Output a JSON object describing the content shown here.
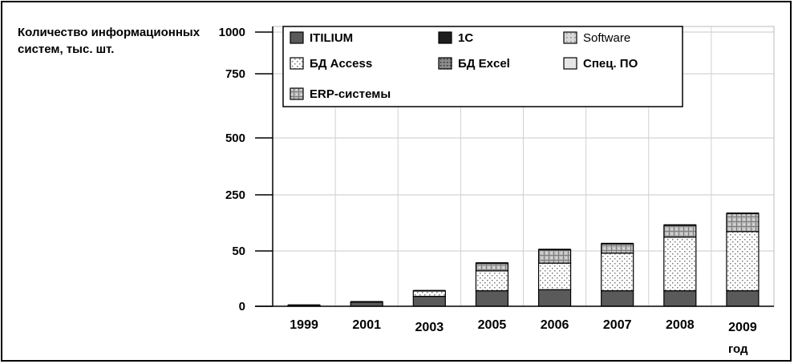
{
  "chart_data": {
    "type": "bar",
    "stacked": true,
    "ylabel": "Количество информационных систем, тыс.  шт.",
    "xlabel": "год",
    "y_ticks": [
      "1000",
      "750",
      "500",
      "250",
      "50",
      "0"
    ],
    "categories": [
      "1999",
      "2001",
      "2003",
      "2005",
      "2006",
      "2007",
      "2008",
      "2009"
    ],
    "legend_position": "top-left, inside plot",
    "grid": true,
    "series": [
      {
        "name": "ITILIUM",
        "color": "#5a5a5a",
        "pattern": "solid",
        "values": [
          1,
          4,
          9,
          14,
          15,
          14,
          14,
          14
        ]
      },
      {
        "name": "1C",
        "color": "#1e1e1e",
        "pattern": "solid-dark",
        "values": [
          0,
          0,
          0,
          0,
          0,
          0,
          0,
          0
        ]
      },
      {
        "name": "Software",
        "color": "#c8c8c8",
        "pattern": "light-dots",
        "values": [
          0,
          0,
          0,
          0,
          0,
          0,
          0,
          0
        ]
      },
      {
        "name": "БД Access",
        "color": "#ffffff",
        "pattern": "dots",
        "values": [
          0,
          0,
          5,
          18,
          24,
          34,
          85,
          105
        ]
      },
      {
        "name": "БД Excel",
        "color": "#9a9a9a",
        "pattern": "dense-dots",
        "values": [
          0,
          0,
          0,
          0,
          0,
          0,
          0,
          0
        ]
      },
      {
        "name": "Спец. ПО",
        "color": "#e6e6e6",
        "pattern": "solid-light",
        "values": [
          0,
          0,
          0,
          0,
          0,
          0,
          0,
          0
        ]
      },
      {
        "name": "ERP-системы",
        "color": "#b4b4b4",
        "pattern": "grid",
        "values": [
          0,
          0,
          0,
          7,
          16,
          28,
          43,
          65
        ]
      }
    ]
  }
}
